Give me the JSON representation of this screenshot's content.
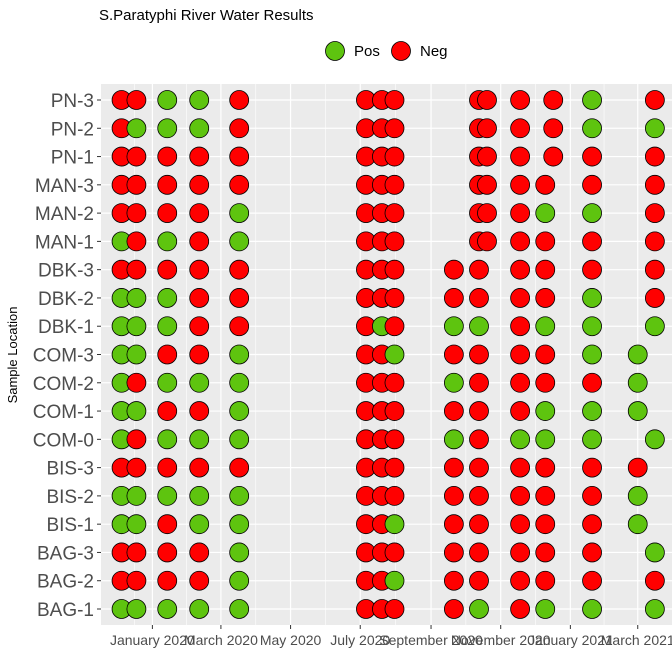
{
  "chart_data": {
    "type": "scatter",
    "title": "S.Paratyphi River Water Results",
    "ylabel": "Sample Location",
    "xlabel": "",
    "grid": true,
    "legend_placement": "top",
    "legend": [
      {
        "name": "Pos",
        "color": "#5ec40f"
      },
      {
        "name": "Neg",
        "color": "#ff0000"
      }
    ],
    "x_ticks": [
      {
        "date": "2020-01-01",
        "label": "January 2020"
      },
      {
        "date": "2020-03-01",
        "label": "March 2020"
      },
      {
        "date": "2020-05-01",
        "label": "May 2020"
      },
      {
        "date": "2020-07-01",
        "label": "July 2020"
      },
      {
        "date": "2020-09-01",
        "label": "September 2020"
      },
      {
        "date": "2020-11-01",
        "label": "November 2020"
      },
      {
        "date": "2021-01-01",
        "label": "January 2021"
      },
      {
        "date": "2021-03-01",
        "label": "March 2021"
      }
    ],
    "xlim": [
      "2019-11-17",
      "2021-03-31"
    ],
    "locations": [
      "BAG-1",
      "BAG-2",
      "BAG-3",
      "BIS-1",
      "BIS-2",
      "BIS-3",
      "COM-0",
      "COM-1",
      "COM-2",
      "COM-3",
      "DBK-1",
      "DBK-2",
      "DBK-3",
      "MAN-1",
      "MAN-2",
      "MAN-3",
      "PN-1",
      "PN-2",
      "PN-3"
    ],
    "dates": [
      "2019-12-05",
      "2019-12-18",
      "2020-01-14",
      "2020-02-11",
      "2020-03-17",
      "2020-07-06",
      "2020-07-20",
      "2020-07-31",
      "2020-09-21",
      "2020-10-13",
      "2020-10-20",
      "2020-11-18",
      "2020-12-10",
      "2020-12-17",
      "2021-01-20",
      "2021-02-01",
      "2021-02-20",
      "2021-03-16"
    ],
    "results": {
      "PN-3": {
        "2019-12-05": "Neg",
        "2019-12-18": "Neg",
        "2020-01-14": "Pos",
        "2020-02-11": "Pos",
        "2020-03-17": "Neg",
        "2020-07-06": "Neg",
        "2020-07-20": "Neg",
        "2020-07-31": "Neg",
        "2020-10-13": "Neg",
        "2020-10-20": "Neg",
        "2020-11-18": "Neg",
        "2020-12-17": "Neg",
        "2021-01-20": "Pos",
        "2021-03-16": "Neg"
      },
      "PN-2": {
        "2019-12-05": "Neg",
        "2019-12-18": "Pos",
        "2020-01-14": "Pos",
        "2020-02-11": "Pos",
        "2020-03-17": "Neg",
        "2020-07-06": "Neg",
        "2020-07-20": "Neg",
        "2020-07-31": "Neg",
        "2020-10-13": "Neg",
        "2020-10-20": "Neg",
        "2020-11-18": "Neg",
        "2020-12-17": "Neg",
        "2021-01-20": "Pos",
        "2021-03-16": "Pos"
      },
      "PN-1": {
        "2019-12-05": "Neg",
        "2019-12-18": "Neg",
        "2020-01-14": "Neg",
        "2020-02-11": "Neg",
        "2020-03-17": "Neg",
        "2020-07-06": "Neg",
        "2020-07-20": "Neg",
        "2020-07-31": "Neg",
        "2020-10-13": "Neg",
        "2020-10-20": "Neg",
        "2020-11-18": "Neg",
        "2020-12-17": "Neg",
        "2021-01-20": "Neg",
        "2021-03-16": "Neg"
      },
      "MAN-3": {
        "2019-12-05": "Neg",
        "2019-12-18": "Neg",
        "2020-01-14": "Neg",
        "2020-02-11": "Neg",
        "2020-03-17": "Neg",
        "2020-07-06": "Neg",
        "2020-07-20": "Neg",
        "2020-07-31": "Neg",
        "2020-10-13": "Neg",
        "2020-10-20": "Neg",
        "2020-11-18": "Neg",
        "2020-12-10": "Neg",
        "2021-01-20": "Neg",
        "2021-03-16": "Neg"
      },
      "MAN-2": {
        "2019-12-05": "Neg",
        "2019-12-18": "Neg",
        "2020-01-14": "Neg",
        "2020-02-11": "Neg",
        "2020-03-17": "Pos",
        "2020-07-06": "Neg",
        "2020-07-20": "Neg",
        "2020-07-31": "Neg",
        "2020-10-13": "Neg",
        "2020-10-20": "Neg",
        "2020-11-18": "Neg",
        "2020-12-10": "Pos",
        "2021-01-20": "Pos",
        "2021-03-16": "Neg"
      },
      "MAN-1": {
        "2019-12-05": "Pos",
        "2019-12-18": "Neg",
        "2020-01-14": "Pos",
        "2020-02-11": "Neg",
        "2020-03-17": "Pos",
        "2020-07-06": "Neg",
        "2020-07-20": "Neg",
        "2020-07-31": "Neg",
        "2020-10-13": "Neg",
        "2020-10-20": "Neg",
        "2020-11-18": "Neg",
        "2020-12-10": "Neg",
        "2021-01-20": "Neg",
        "2021-03-16": "Neg"
      },
      "DBK-3": {
        "2019-12-05": "Neg",
        "2019-12-18": "Neg",
        "2020-01-14": "Neg",
        "2020-02-11": "Neg",
        "2020-03-17": "Neg",
        "2020-07-06": "Neg",
        "2020-07-20": "Neg",
        "2020-07-31": "Neg",
        "2020-09-21": "Neg",
        "2020-10-13": "Neg",
        "2020-11-18": "Neg",
        "2020-12-10": "Neg",
        "2021-01-20": "Neg",
        "2021-03-16": "Neg"
      },
      "DBK-2": {
        "2019-12-05": "Pos",
        "2019-12-18": "Pos",
        "2020-01-14": "Pos",
        "2020-02-11": "Neg",
        "2020-03-17": "Neg",
        "2020-07-06": "Neg",
        "2020-07-20": "Neg",
        "2020-07-31": "Neg",
        "2020-09-21": "Neg",
        "2020-10-13": "Neg",
        "2020-11-18": "Neg",
        "2020-12-10": "Neg",
        "2021-01-20": "Pos",
        "2021-03-16": "Neg"
      },
      "DBK-1": {
        "2019-12-05": "Pos",
        "2019-12-18": "Pos",
        "2020-01-14": "Pos",
        "2020-02-11": "Neg",
        "2020-03-17": "Neg",
        "2020-07-06": "Neg",
        "2020-07-20": "Pos",
        "2020-07-31": "Neg",
        "2020-09-21": "Pos",
        "2020-10-13": "Pos",
        "2020-11-18": "Neg",
        "2020-12-10": "Pos",
        "2021-01-20": "Pos",
        "2021-03-16": "Pos"
      },
      "COM-3": {
        "2019-12-05": "Pos",
        "2019-12-18": "Pos",
        "2020-01-14": "Neg",
        "2020-02-11": "Neg",
        "2020-03-17": "Pos",
        "2020-07-06": "Neg",
        "2020-07-20": "Neg",
        "2020-07-31": "Pos",
        "2020-09-21": "Neg",
        "2020-10-13": "Neg",
        "2020-11-18": "Neg",
        "2020-12-10": "Neg",
        "2021-01-20": "Pos",
        "2021-03-01": "Pos"
      },
      "COM-2": {
        "2019-12-05": "Pos",
        "2019-12-18": "Neg",
        "2020-01-14": "Pos",
        "2020-02-11": "Pos",
        "2020-03-17": "Pos",
        "2020-07-06": "Neg",
        "2020-07-20": "Neg",
        "2020-07-31": "Neg",
        "2020-09-21": "Pos",
        "2020-10-13": "Neg",
        "2020-11-18": "Neg",
        "2020-12-10": "Neg",
        "2021-01-20": "Neg",
        "2021-03-01": "Pos"
      },
      "COM-1": {
        "2019-12-05": "Pos",
        "2019-12-18": "Pos",
        "2020-01-14": "Neg",
        "2020-02-11": "Neg",
        "2020-03-17": "Pos",
        "2020-07-06": "Neg",
        "2020-07-20": "Neg",
        "2020-07-31": "Neg",
        "2020-09-21": "Neg",
        "2020-10-13": "Neg",
        "2020-11-18": "Neg",
        "2020-12-10": "Pos",
        "2021-01-20": "Pos",
        "2021-03-01": "Pos"
      },
      "COM-0": {
        "2019-12-05": "Pos",
        "2019-12-18": "Neg",
        "2020-01-14": "Pos",
        "2020-02-11": "Pos",
        "2020-03-17": "Pos",
        "2020-07-06": "Neg",
        "2020-07-20": "Neg",
        "2020-07-31": "Neg",
        "2020-09-21": "Pos",
        "2020-10-13": "Neg",
        "2020-11-18": "Pos",
        "2020-12-10": "Pos",
        "2021-01-20": "Pos",
        "2021-03-16": "Pos"
      },
      "BIS-3": {
        "2019-12-05": "Neg",
        "2019-12-18": "Neg",
        "2020-01-14": "Neg",
        "2020-02-11": "Neg",
        "2020-03-17": "Neg",
        "2020-07-06": "Neg",
        "2020-07-20": "Neg",
        "2020-07-31": "Neg",
        "2020-09-21": "Neg",
        "2020-10-13": "Neg",
        "2020-11-18": "Neg",
        "2020-12-10": "Neg",
        "2021-01-20": "Neg",
        "2021-03-01": "Neg"
      },
      "BIS-2": {
        "2019-12-05": "Pos",
        "2019-12-18": "Pos",
        "2020-01-14": "Pos",
        "2020-02-11": "Pos",
        "2020-03-17": "Pos",
        "2020-07-06": "Neg",
        "2020-07-20": "Neg",
        "2020-07-31": "Neg",
        "2020-09-21": "Neg",
        "2020-10-13": "Neg",
        "2020-11-18": "Neg",
        "2020-12-10": "Neg",
        "2021-01-20": "Neg",
        "2021-03-01": "Pos"
      },
      "BIS-1": {
        "2019-12-05": "Pos",
        "2019-12-18": "Pos",
        "2020-01-14": "Neg",
        "2020-02-11": "Pos",
        "2020-03-17": "Pos",
        "2020-07-06": "Neg",
        "2020-07-20": "Neg",
        "2020-07-31": "Pos",
        "2020-09-21": "Neg",
        "2020-10-13": "Neg",
        "2020-11-18": "Neg",
        "2020-12-10": "Neg",
        "2021-01-20": "Neg",
        "2021-03-01": "Pos"
      },
      "BAG-3": {
        "2019-12-05": "Neg",
        "2019-12-18": "Neg",
        "2020-01-14": "Neg",
        "2020-02-11": "Neg",
        "2020-03-17": "Pos",
        "2020-07-06": "Neg",
        "2020-07-20": "Neg",
        "2020-07-31": "Neg",
        "2020-09-21": "Neg",
        "2020-10-13": "Neg",
        "2020-11-18": "Neg",
        "2020-12-10": "Neg",
        "2021-01-20": "Neg",
        "2021-03-16": "Pos"
      },
      "BAG-2": {
        "2019-12-05": "Neg",
        "2019-12-18": "Neg",
        "2020-01-14": "Neg",
        "2020-02-11": "Neg",
        "2020-03-17": "Pos",
        "2020-07-06": "Neg",
        "2020-07-20": "Neg",
        "2020-07-31": "Pos",
        "2020-09-21": "Neg",
        "2020-10-13": "Neg",
        "2020-11-18": "Neg",
        "2020-12-10": "Neg",
        "2021-01-20": "Neg",
        "2021-03-16": "Neg"
      },
      "BAG-1": {
        "2019-12-05": "Pos",
        "2019-12-18": "Pos",
        "2020-01-14": "Pos",
        "2020-02-11": "Pos",
        "2020-03-17": "Pos",
        "2020-07-06": "Neg",
        "2020-07-20": "Neg",
        "2020-07-31": "Neg",
        "2020-09-21": "Neg",
        "2020-10-13": "Pos",
        "2020-11-18": "Neg",
        "2020-12-10": "Pos",
        "2021-01-20": "Pos",
        "2021-03-16": "Pos"
      }
    }
  }
}
